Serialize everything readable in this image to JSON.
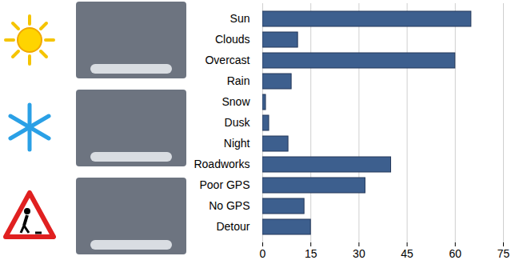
{
  "chart_data": {
    "type": "bar",
    "orientation": "horizontal",
    "categories": [
      "Sun",
      "Clouds",
      "Overcast",
      "Rain",
      "Snow",
      "Dusk",
      "Night",
      "Roadworks",
      "Poor GPS",
      "No GPS",
      "Detour"
    ],
    "values": [
      65,
      11,
      60,
      9,
      1,
      2,
      8,
      40,
      32,
      13,
      15
    ],
    "color": "#3d5f8e",
    "xlim": [
      0,
      75
    ],
    "xticks": [
      0,
      15,
      30,
      45,
      60,
      75
    ],
    "grid": true
  }
}
